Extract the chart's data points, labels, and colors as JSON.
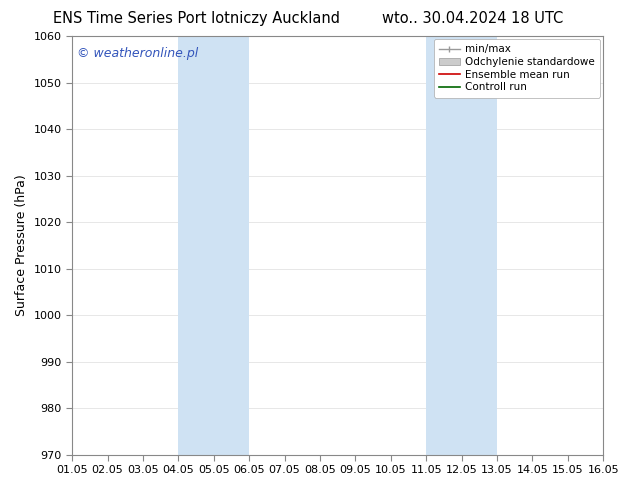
{
  "title_left": "ENS Time Series Port lotniczy Auckland",
  "title_right": "wto.. 30.04.2024 18 UTC",
  "ylabel": "Surface Pressure (hPa)",
  "ylim": [
    970,
    1060
  ],
  "yticks": [
    970,
    980,
    990,
    1000,
    1010,
    1020,
    1030,
    1040,
    1050,
    1060
  ],
  "xtick_labels": [
    "01.05",
    "02.05",
    "03.05",
    "04.05",
    "05.05",
    "06.05",
    "07.05",
    "08.05",
    "09.05",
    "10.05",
    "11.05",
    "12.05",
    "13.05",
    "14.05",
    "15.05",
    "16.05"
  ],
  "shaded_regions": [
    {
      "xstart": 3.0,
      "xend": 5.0,
      "color": "#cfe2f3"
    },
    {
      "xstart": 10.0,
      "xend": 12.0,
      "color": "#cfe2f3"
    }
  ],
  "watermark": "© weatheronline.pl",
  "watermark_color": "#3355bb",
  "legend_items": [
    {
      "label": "min/max"
    },
    {
      "label": "Odchylenie standardowe"
    },
    {
      "label": "Ensemble mean run"
    },
    {
      "label": "Controll run"
    }
  ],
  "bg_color": "#ffffff",
  "spine_color": "#888888",
  "title_fontsize": 10.5,
  "label_fontsize": 9,
  "tick_fontsize": 8,
  "watermark_fontsize": 9,
  "legend_fontsize": 7.5
}
